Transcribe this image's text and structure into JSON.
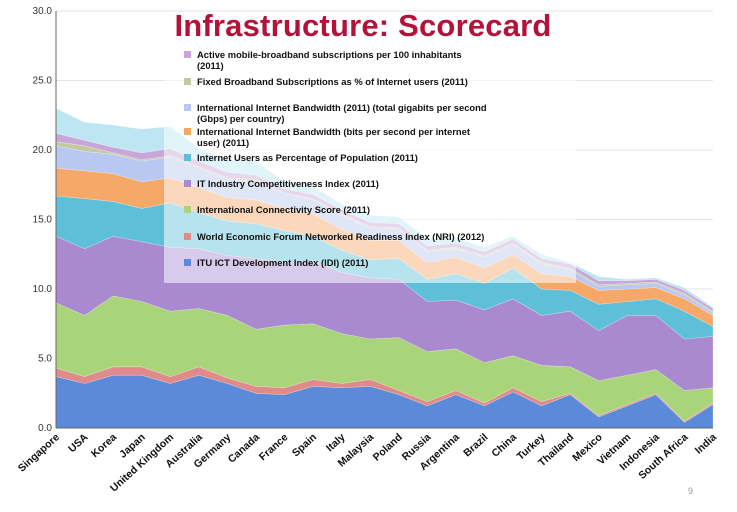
{
  "title": "Infrastructure: Scorecard",
  "page_number": "9",
  "chart_data": {
    "type": "area",
    "stacked": true,
    "ylim": [
      0,
      30
    ],
    "yticks": [
      "0.0",
      "5.0",
      "10.0",
      "15.0",
      "20.0",
      "25.0",
      "30.0"
    ],
    "legend_position": "inside-top",
    "categories": [
      "Singapore",
      "USA",
      "Korea",
      "Japan",
      "United Kingdom",
      "Australia",
      "Germany",
      "Canada",
      "France",
      "Spain",
      "Italy",
      "Malaysia",
      "Poland",
      "Russia",
      "Argentina",
      "Brazil",
      "China",
      "Turkey",
      "Thailand",
      "Mexico",
      "Vietnam",
      "Indonesia",
      "South Africa",
      "India"
    ],
    "series": [
      {
        "name": "ITU ICT Development Index (IDI) (2011)",
        "color": "#5b8bd8",
        "values": [
          3.7,
          3.2,
          3.8,
          3.8,
          3.2,
          3.8,
          3.2,
          2.5,
          2.4,
          3.0,
          2.9,
          3.0,
          2.4,
          1.6,
          2.4,
          1.6,
          2.6,
          1.6,
          2.4,
          0.8,
          1.6,
          2.4,
          0.4,
          1.7
        ]
      },
      {
        "name": "World Economic Forum Networked Readiness Index (NRI) (2012)",
        "color": "#e08a8a",
        "values": [
          0.6,
          0.5,
          0.6,
          0.6,
          0.5,
          0.6,
          0.4,
          0.5,
          0.5,
          0.5,
          0.3,
          0.5,
          0.3,
          0.3,
          0.3,
          0.2,
          0.3,
          0.3,
          0.1,
          0.1,
          0.1,
          0.1,
          0.1,
          0.1
        ]
      },
      {
        "name": "International Connectivity Score (2011)",
        "color": "#a9d47a",
        "values": [
          4.7,
          4.4,
          5.1,
          4.7,
          4.7,
          4.2,
          4.5,
          4.1,
          4.5,
          4.0,
          3.6,
          2.9,
          3.8,
          3.6,
          3.0,
          2.9,
          2.3,
          2.6,
          1.9,
          2.5,
          2.1,
          1.7,
          2.2,
          1.1
        ]
      },
      {
        "name": "IT Industry Competitiveness Index (2011)",
        "color": "#a98ad0",
        "values": [
          4.8,
          4.8,
          4.3,
          4.3,
          4.6,
          4.3,
          4.3,
          5.1,
          4.5,
          4.5,
          4.4,
          4.4,
          4.2,
          3.6,
          3.5,
          3.8,
          4.1,
          3.6,
          4.0,
          3.6,
          4.3,
          3.9,
          3.7,
          3.7
        ]
      },
      {
        "name": "Internet Users as Percentage of Population (2011)",
        "color": "#5ec0d8",
        "values": [
          2.9,
          3.6,
          2.5,
          2.4,
          3.2,
          2.6,
          2.5,
          2.5,
          2.3,
          1.8,
          1.6,
          1.3,
          1.5,
          1.6,
          1.9,
          1.9,
          2.2,
          1.9,
          1.5,
          1.9,
          1.0,
          1.2,
          2.0,
          0.7
        ]
      },
      {
        "name": "International Internet Bandwidth (bits per second per internet user) (2011)",
        "color": "#f5a868",
        "values": [
          2.0,
          2.0,
          2.0,
          1.9,
          1.8,
          1.8,
          1.7,
          1.7,
          1.6,
          1.6,
          1.5,
          1.4,
          1.3,
          1.2,
          1.2,
          1.1,
          1.0,
          1.1,
          1.0,
          1.0,
          0.9,
          0.8,
          0.9,
          0.8
        ]
      },
      {
        "name": "International Internet Bandwidth (2011) (total gigabits per second (Gbps) per country)",
        "color": "#b8c8f0",
        "values": [
          1.6,
          1.4,
          1.4,
          1.5,
          1.5,
          1.4,
          1.3,
          1.3,
          1.1,
          1.0,
          1.0,
          0.9,
          0.8,
          0.8,
          0.6,
          0.8,
          0.7,
          0.7,
          0.5,
          0.3,
          0.3,
          0.3,
          0.3,
          0.2
        ]
      },
      {
        "name": "Fixed Broadband Subscriptions as % of Internet users (2011)",
        "color": "#c3c9a0",
        "values": [
          0.3,
          0.4,
          0.1,
          0.1,
          0.1,
          0.1,
          0.1,
          0.2,
          0.0,
          0.1,
          0.1,
          0.1,
          0.1,
          0.1,
          0.1,
          0.1,
          0.1,
          0.1,
          0.1,
          0.1,
          0.1,
          0.1,
          0.1,
          0.1
        ]
      },
      {
        "name": "Active mobile-broadband subscriptions per 100 inhabitants (2011)",
        "color": "#c8a6d9",
        "values": [
          0.6,
          0.4,
          0.4,
          0.5,
          0.5,
          0.4,
          0.4,
          0.3,
          0.3,
          0.3,
          0.3,
          0.3,
          0.3,
          0.3,
          0.3,
          0.3,
          0.3,
          0.3,
          0.3,
          0.3,
          0.2,
          0.2,
          0.2,
          0.2
        ]
      },
      {
        "name": "",
        "color": "#bde6f2",
        "values": [
          1.8,
          1.3,
          1.6,
          1.7,
          1.6,
          0.9,
          0.9,
          1.0,
          0.5,
          0.6,
          0.4,
          0.5,
          0.5,
          0.5,
          0.4,
          0.3,
          0.2,
          0.3,
          0.1,
          0.3,
          0.1,
          0.1,
          0.2,
          0.1
        ]
      }
    ],
    "legend_order": [
      8,
      7,
      6,
      5,
      4,
      3,
      2,
      1,
      0
    ]
  }
}
